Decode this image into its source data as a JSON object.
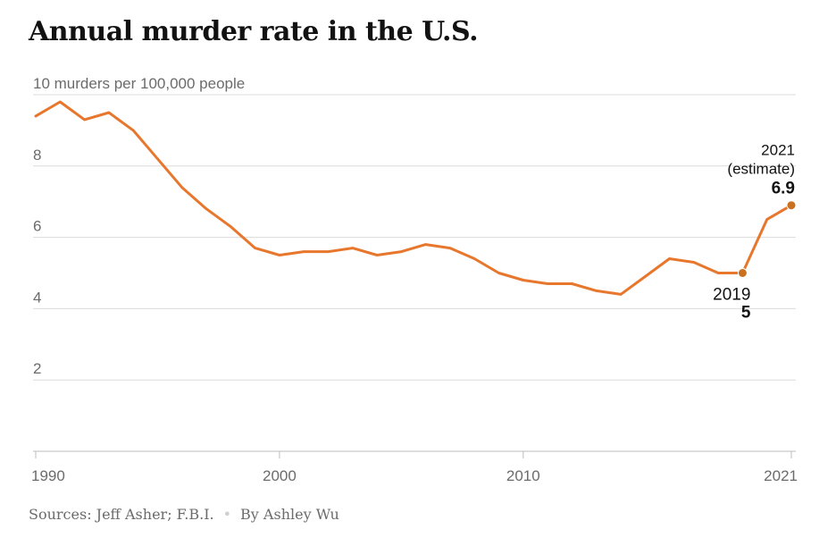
{
  "title": "Annual murder rate in the U.S.",
  "footer": {
    "sources": "Sources: Jeff Asher; F.B.I.",
    "byline": "By Ashley Wu"
  },
  "colors": {
    "line": "#e8772e",
    "marker": "#c9711e",
    "grid": "#dcdcdc",
    "axis_text": "#6b6b6b",
    "annotation_text": "#121212"
  },
  "chart_data": {
    "type": "line",
    "title": "Annual murder rate in the U.S.",
    "ylabel": "10 murders per 100,000 people",
    "ylim": [
      0,
      10
    ],
    "xlim": [
      1990,
      2021
    ],
    "y_ticks": [
      {
        "value": 10,
        "label": "10 murders per 100,000 people"
      },
      {
        "value": 8,
        "label": "8"
      },
      {
        "value": 6,
        "label": "6"
      },
      {
        "value": 4,
        "label": "4"
      },
      {
        "value": 2,
        "label": "2"
      }
    ],
    "x_ticks": [
      {
        "value": 1990,
        "label": "1990"
      },
      {
        "value": 2000,
        "label": "2000"
      },
      {
        "value": 2010,
        "label": "2010"
      },
      {
        "value": 2021,
        "label": "2021"
      }
    ],
    "series": [
      {
        "name": "Murder rate",
        "x": [
          1990,
          1991,
          1992,
          1993,
          1994,
          1995,
          1996,
          1997,
          1998,
          1999,
          2000,
          2001,
          2002,
          2003,
          2004,
          2005,
          2006,
          2007,
          2008,
          2009,
          2010,
          2011,
          2012,
          2013,
          2014,
          2015,
          2016,
          2017,
          2018,
          2019,
          2020,
          2021
        ],
        "y": [
          9.4,
          9.8,
          9.3,
          9.5,
          9.0,
          8.2,
          7.4,
          6.8,
          6.3,
          5.7,
          5.5,
          5.6,
          5.6,
          5.7,
          5.5,
          5.6,
          5.8,
          5.7,
          5.4,
          5.0,
          4.8,
          4.7,
          4.7,
          4.5,
          4.4,
          4.9,
          5.4,
          5.3,
          5.0,
          5.0,
          6.5,
          6.9
        ]
      }
    ],
    "annotations": [
      {
        "x": 2019,
        "y": 5.0,
        "lines": [
          "2019"
        ],
        "value": "5",
        "position": "below"
      },
      {
        "x": 2021,
        "y": 6.9,
        "lines": [
          "2021",
          "(estimate)"
        ],
        "value": "6.9",
        "position": "above"
      }
    ]
  }
}
